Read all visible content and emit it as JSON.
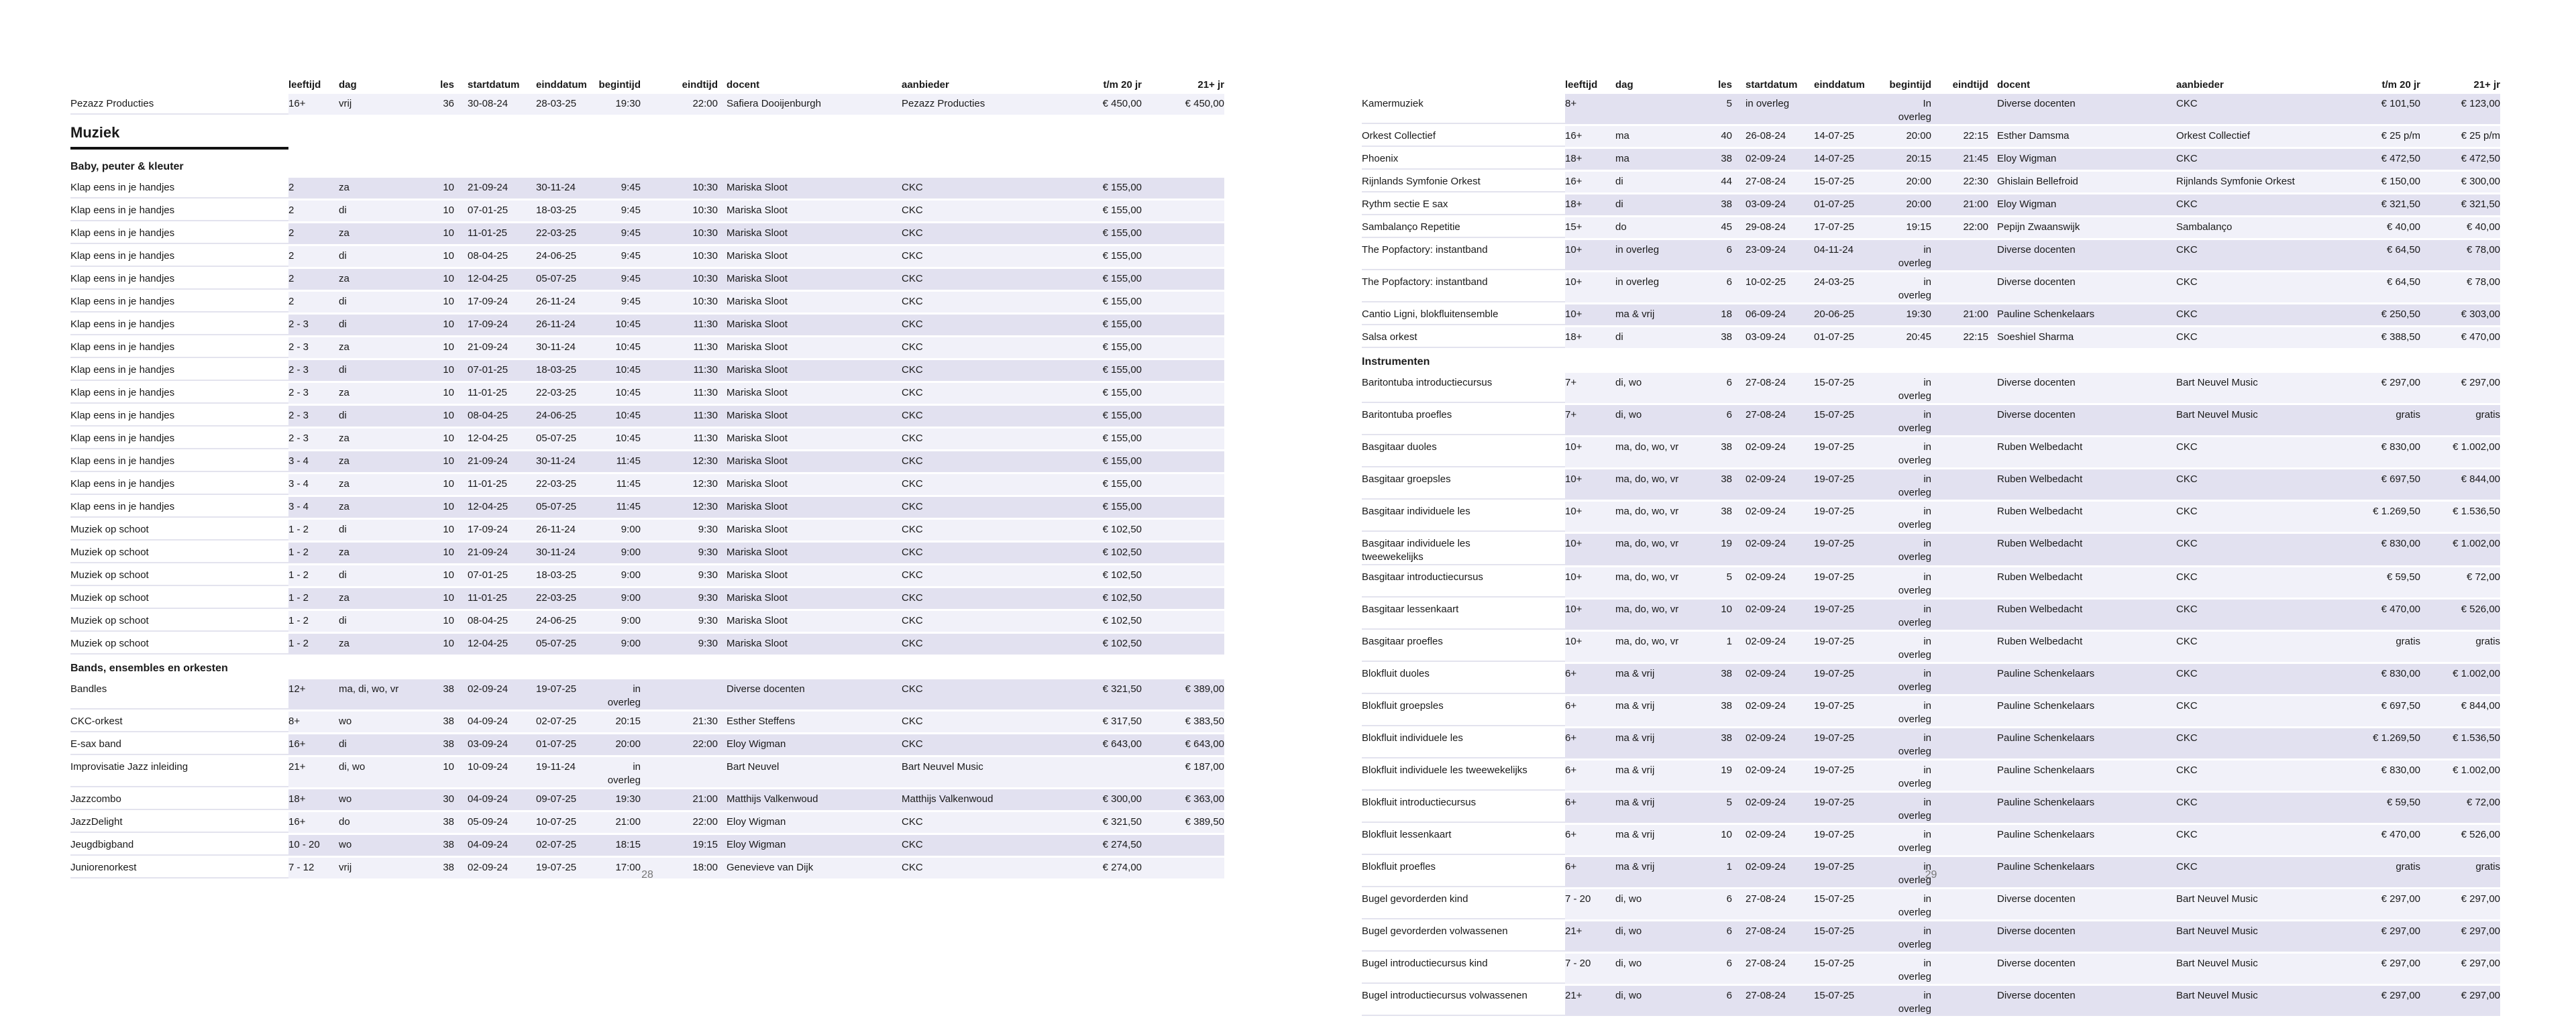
{
  "colors": {
    "stripe_dark": "#e2e1f0",
    "stripe_light": "#f1f1f9",
    "name_divider": "#e3e3ee",
    "heading_rule": "#121212",
    "page_number_color": "#777777"
  },
  "columns": [
    "",
    "leeftijd",
    "dag",
    "les",
    "startdatum",
    "einddatum",
    "begintijd",
    "eindtijd",
    "docent",
    "aanbieder",
    "t/m 20 jr",
    "21+ jr"
  ],
  "page_left": {
    "page_number": "28",
    "sections": [
      {
        "type": "rows",
        "rows": [
          [
            "Pezazz Producties",
            "16+",
            "vrij",
            "36",
            "30-08-24",
            "28-03-25",
            "19:30",
            "22:00",
            "Safiera Dooijenburgh",
            "Pezazz Producties",
            "€ 450,00",
            "€ 450,00"
          ]
        ]
      },
      {
        "type": "heading1",
        "label": "Muziek"
      },
      {
        "type": "heading2",
        "label": "Baby, peuter & kleuter"
      },
      {
        "type": "rows",
        "rows": [
          [
            "Klap eens in je handjes",
            "2",
            "za",
            "10",
            "21-09-24",
            "30-11-24",
            "9:45",
            "10:30",
            "Mariska Sloot",
            "CKC",
            "€ 155,00",
            ""
          ],
          [
            "Klap eens in je handjes",
            "2",
            "di",
            "10",
            "07-01-25",
            "18-03-25",
            "9:45",
            "10:30",
            "Mariska Sloot",
            "CKC",
            "€ 155,00",
            ""
          ],
          [
            "Klap eens in je handjes",
            "2",
            "za",
            "10",
            "11-01-25",
            "22-03-25",
            "9:45",
            "10:30",
            "Mariska Sloot",
            "CKC",
            "€ 155,00",
            ""
          ],
          [
            "Klap eens in je handjes",
            "2",
            "di",
            "10",
            "08-04-25",
            "24-06-25",
            "9:45",
            "10:30",
            "Mariska Sloot",
            "CKC",
            "€ 155,00",
            ""
          ],
          [
            "Klap eens in je handjes",
            "2",
            "za",
            "10",
            "12-04-25",
            "05-07-25",
            "9:45",
            "10:30",
            "Mariska Sloot",
            "CKC",
            "€ 155,00",
            ""
          ],
          [
            "Klap eens in je handjes",
            "2",
            "di",
            "10",
            "17-09-24",
            "26-11-24",
            "9:45",
            "10:30",
            "Mariska Sloot",
            "CKC",
            "€ 155,00",
            ""
          ],
          [
            "Klap eens in je handjes",
            "2 - 3",
            "di",
            "10",
            "17-09-24",
            "26-11-24",
            "10:45",
            "11:30",
            "Mariska Sloot",
            "CKC",
            "€ 155,00",
            ""
          ],
          [
            "Klap eens in je handjes",
            "2 - 3",
            "za",
            "10",
            "21-09-24",
            "30-11-24",
            "10:45",
            "11:30",
            "Mariska Sloot",
            "CKC",
            "€ 155,00",
            ""
          ],
          [
            "Klap eens in je handjes",
            "2 - 3",
            "di",
            "10",
            "07-01-25",
            "18-03-25",
            "10:45",
            "11:30",
            "Mariska Sloot",
            "CKC",
            "€ 155,00",
            ""
          ],
          [
            "Klap eens in je handjes",
            "2 - 3",
            "za",
            "10",
            "11-01-25",
            "22-03-25",
            "10:45",
            "11:30",
            "Mariska Sloot",
            "CKC",
            "€ 155,00",
            ""
          ],
          [
            "Klap eens in je handjes",
            "2 - 3",
            "di",
            "10",
            "08-04-25",
            "24-06-25",
            "10:45",
            "11:30",
            "Mariska Sloot",
            "CKC",
            "€ 155,00",
            ""
          ],
          [
            "Klap eens in je handjes",
            "2 - 3",
            "za",
            "10",
            "12-04-25",
            "05-07-25",
            "10:45",
            "11:30",
            "Mariska Sloot",
            "CKC",
            "€ 155,00",
            ""
          ],
          [
            "Klap eens in je handjes",
            "3 - 4",
            "za",
            "10",
            "21-09-24",
            "30-11-24",
            "11:45",
            "12:30",
            "Mariska Sloot",
            "CKC",
            "€ 155,00",
            ""
          ],
          [
            "Klap eens in je handjes",
            "3 - 4",
            "za",
            "10",
            "11-01-25",
            "22-03-25",
            "11:45",
            "12:30",
            "Mariska Sloot",
            "CKC",
            "€ 155,00",
            ""
          ],
          [
            "Klap eens in je handjes",
            "3 - 4",
            "za",
            "10",
            "12-04-25",
            "05-07-25",
            "11:45",
            "12:30",
            "Mariska Sloot",
            "CKC",
            "€ 155,00",
            ""
          ],
          [
            "Muziek op schoot",
            "1 - 2",
            "di",
            "10",
            "17-09-24",
            "26-11-24",
            "9:00",
            "9:30",
            "Mariska Sloot",
            "CKC",
            "€ 102,50",
            ""
          ],
          [
            "Muziek op schoot",
            "1 - 2",
            "za",
            "10",
            "21-09-24",
            "30-11-24",
            "9:00",
            "9:30",
            "Mariska Sloot",
            "CKC",
            "€ 102,50",
            ""
          ],
          [
            "Muziek op schoot",
            "1 - 2",
            "di",
            "10",
            "07-01-25",
            "18-03-25",
            "9:00",
            "9:30",
            "Mariska Sloot",
            "CKC",
            "€ 102,50",
            ""
          ],
          [
            "Muziek op schoot",
            "1 - 2",
            "za",
            "10",
            "11-01-25",
            "22-03-25",
            "9:00",
            "9:30",
            "Mariska Sloot",
            "CKC",
            "€ 102,50",
            ""
          ],
          [
            "Muziek op schoot",
            "1 - 2",
            "di",
            "10",
            "08-04-25",
            "24-06-25",
            "9:00",
            "9:30",
            "Mariska Sloot",
            "CKC",
            "€ 102,50",
            ""
          ],
          [
            "Muziek op schoot",
            "1 - 2",
            "za",
            "10",
            "12-04-25",
            "05-07-25",
            "9:00",
            "9:30",
            "Mariska Sloot",
            "CKC",
            "€ 102,50",
            ""
          ]
        ]
      },
      {
        "type": "heading2",
        "label": "Bands, ensembles en orkesten"
      },
      {
        "type": "rows",
        "rows": [
          [
            "Bandles",
            "12+",
            "ma, di, wo, vr",
            "38",
            "02-09-24",
            "19-07-25",
            "in overleg",
            "",
            "Diverse docenten",
            "CKC",
            "€ 321,50",
            "€ 389,00"
          ],
          [
            "CKC-orkest",
            "8+",
            "wo",
            "38",
            "04-09-24",
            "02-07-25",
            "20:15",
            "21:30",
            "Esther Steffens",
            "CKC",
            "€ 317,50",
            "€ 383,50"
          ],
          [
            "E-sax band",
            "16+",
            "di",
            "38",
            "03-09-24",
            "01-07-25",
            "20:00",
            "22:00",
            "Eloy Wigman",
            "CKC",
            "€ 643,00",
            "€ 643,00"
          ],
          [
            "Improvisatie Jazz inleiding",
            "21+",
            "di, wo",
            "10",
            "10-09-24",
            "19-11-24",
            "in overleg",
            "",
            "Bart Neuvel",
            "Bart Neuvel Music",
            "",
            "€ 187,00"
          ],
          [
            "Jazzcombo",
            "18+",
            "wo",
            "30",
            "04-09-24",
            "09-07-25",
            "19:30",
            "21:00",
            "Matthijs Valkenwoud",
            "Matthijs Valkenwoud",
            "€ 300,00",
            "€ 363,00"
          ],
          [
            "JazzDelight",
            "16+",
            "do",
            "38",
            "05-09-24",
            "10-07-25",
            "21:00",
            "22:00",
            "Eloy Wigman",
            "CKC",
            "€ 321,50",
            "€ 389,50"
          ],
          [
            "Jeugdbigband",
            "10 - 20",
            "wo",
            "38",
            "04-09-24",
            "02-07-25",
            "18:15",
            "19:15",
            "Eloy Wigman",
            "CKC",
            "€ 274,50",
            ""
          ],
          [
            "Juniorenorkest",
            "7 - 12",
            "vrij",
            "38",
            "02-09-24",
            "19-07-25",
            "17:00",
            "18:00",
            "Genevieve van Dijk",
            "CKC",
            "€ 274,00",
            ""
          ]
        ]
      }
    ]
  },
  "page_right": {
    "page_number": "29",
    "sections": [
      {
        "type": "rows",
        "rows": [
          [
            "Kamermuziek",
            "8+",
            "",
            "5",
            "in overleg",
            "",
            "In overleg",
            "",
            "Diverse docenten",
            "CKC",
            "€ 101,50",
            "€ 123,00"
          ],
          [
            "Orkest Collectief",
            "16+",
            "ma",
            "40",
            "26-08-24",
            "14-07-25",
            "20:00",
            "22:15",
            "Esther Damsma",
            "Orkest Collectief",
            "€ 25 p/m",
            "€ 25 p/m"
          ],
          [
            "Phoenix",
            "18+",
            "ma",
            "38",
            "02-09-24",
            "14-07-25",
            "20:15",
            "21:45",
            "Eloy Wigman",
            "CKC",
            "€ 472,50",
            "€ 472,50"
          ],
          [
            "Rijnlands Symfonie Orkest",
            "16+",
            "di",
            "44",
            "27-08-24",
            "15-07-25",
            "20:00",
            "22:30",
            "Ghislain Bellefroid",
            "Rijnlands Symfonie Orkest",
            "€ 150,00",
            "€ 300,00"
          ],
          [
            "Rythm sectie E sax",
            "18+",
            "di",
            "38",
            "03-09-24",
            "01-07-25",
            "20:00",
            "21:00",
            "Eloy Wigman",
            "CKC",
            "€ 321,50",
            "€ 321,50"
          ],
          [
            "Sambalanço Repetitie",
            "15+",
            "do",
            "45",
            "29-08-24",
            "17-07-25",
            "19:15",
            "22:00",
            "Pepijn Zwaanswijk",
            "Sambalanço",
            "€ 40,00",
            "€ 40,00"
          ],
          [
            "The Popfactory: instantband",
            "10+",
            "in overleg",
            "6",
            "23-09-24",
            "04-11-24",
            "in overleg",
            "",
            "Diverse docenten",
            "CKC",
            "€ 64,50",
            "€ 78,00"
          ],
          [
            "The Popfactory: instantband",
            "10+",
            "in overleg",
            "6",
            "10-02-25",
            "24-03-25",
            "in overleg",
            "",
            "Diverse docenten",
            "CKC",
            "€ 64,50",
            "€ 78,00"
          ],
          [
            "Cantio Ligni, blokfluitensemble",
            "10+",
            "ma & vrij",
            "18",
            "06-09-24",
            "20-06-25",
            "19:30",
            "21:00",
            "Pauline Schenkelaars",
            "CKC",
            "€ 250,50",
            "€ 303,00"
          ],
          [
            "Salsa orkest",
            "18+",
            "di",
            "38",
            "03-09-24",
            "01-07-25",
            "20:45",
            "22:15",
            "Soeshiel Sharma",
            "CKC",
            "€ 388,50",
            "€ 470,00"
          ]
        ]
      },
      {
        "type": "heading2",
        "label": "Instrumenten"
      },
      {
        "type": "rows",
        "rows": [
          [
            "Baritontuba introductiecursus",
            "7+",
            "di, wo",
            "6",
            "27-08-24",
            "15-07-25",
            "in overleg",
            "",
            "Diverse docenten",
            "Bart Neuvel Music",
            "€ 297,00",
            "€ 297,00"
          ],
          [
            "Baritontuba proefles",
            "7+",
            "di, wo",
            "6",
            "27-08-24",
            "15-07-25",
            "in overleg",
            "",
            "Diverse docenten",
            "Bart Neuvel Music",
            "gratis",
            "gratis"
          ],
          [
            "Basgitaar duoles",
            "10+",
            "ma, do, wo, vr",
            "38",
            "02-09-24",
            "19-07-25",
            "in overleg",
            "",
            "Ruben Welbedacht",
            "CKC",
            "€ 830,00",
            "€ 1.002,00"
          ],
          [
            "Basgitaar groepsles",
            "10+",
            "ma, do, wo, vr",
            "38",
            "02-09-24",
            "19-07-25",
            "in overleg",
            "",
            "Ruben Welbedacht",
            "CKC",
            "€ 697,50",
            "€ 844,00"
          ],
          [
            "Basgitaar individuele les",
            "10+",
            "ma, do, wo, vr",
            "38",
            "02-09-24",
            "19-07-25",
            "in overleg",
            "",
            "Ruben Welbedacht",
            "CKC",
            "€ 1.269,50",
            "€ 1.536,50"
          ],
          [
            "Basgitaar individuele les tweewekelijks",
            "10+",
            "ma, do, wo, vr",
            "19",
            "02-09-24",
            "19-07-25",
            "in overleg",
            "",
            "Ruben Welbedacht",
            "CKC",
            "€ 830,00",
            "€ 1.002,00"
          ],
          [
            "Basgitaar introductiecursus",
            "10+",
            "ma, do, wo, vr",
            "5",
            "02-09-24",
            "19-07-25",
            "in overleg",
            "",
            "Ruben Welbedacht",
            "CKC",
            "€ 59,50",
            "€ 72,00"
          ],
          [
            "Basgitaar lessenkaart",
            "10+",
            "ma, do, wo, vr",
            "10",
            "02-09-24",
            "19-07-25",
            "in overleg",
            "",
            "Ruben Welbedacht",
            "CKC",
            "€ 470,00",
            "€ 526,00"
          ],
          [
            "Basgitaar proefles",
            "10+",
            "ma, do, wo, vr",
            "1",
            "02-09-24",
            "19-07-25",
            "in overleg",
            "",
            "Ruben Welbedacht",
            "CKC",
            "gratis",
            "gratis"
          ],
          [
            "Blokfluit duoles",
            "6+",
            "ma & vrij",
            "38",
            "02-09-24",
            "19-07-25",
            "in overleg",
            "",
            "Pauline Schenkelaars",
            "CKC",
            "€ 830,00",
            "€ 1.002,00"
          ],
          [
            "Blokfluit groepsles",
            "6+",
            "ma & vrij",
            "38",
            "02-09-24",
            "19-07-25",
            "in overleg",
            "",
            "Pauline Schenkelaars",
            "CKC",
            "€ 697,50",
            "€ 844,00"
          ],
          [
            "Blokfluit individuele les",
            "6+",
            "ma & vrij",
            "38",
            "02-09-24",
            "19-07-25",
            "in overleg",
            "",
            "Pauline Schenkelaars",
            "CKC",
            "€ 1.269,50",
            "€ 1.536,50"
          ],
          [
            "Blokfluit individuele les tweewekelijks",
            "6+",
            "ma & vrij",
            "19",
            "02-09-24",
            "19-07-25",
            "in overleg",
            "",
            "Pauline Schenkelaars",
            "CKC",
            "€ 830,00",
            "€ 1.002,00"
          ],
          [
            "Blokfluit introductiecursus",
            "6+",
            "ma & vrij",
            "5",
            "02-09-24",
            "19-07-25",
            "in overleg",
            "",
            "Pauline Schenkelaars",
            "CKC",
            "€ 59,50",
            "€ 72,00"
          ],
          [
            "Blokfluit lessenkaart",
            "6+",
            "ma & vrij",
            "10",
            "02-09-24",
            "19-07-25",
            "in overleg",
            "",
            "Pauline Schenkelaars",
            "CKC",
            "€ 470,00",
            "€ 526,00"
          ],
          [
            "Blokfluit proefles",
            "6+",
            "ma & vrij",
            "1",
            "02-09-24",
            "19-07-25",
            "in overleg",
            "",
            "Pauline Schenkelaars",
            "CKC",
            "gratis",
            "gratis"
          ],
          [
            "Bugel gevorderden kind",
            "7 - 20",
            "di, wo",
            "6",
            "27-08-24",
            "15-07-25",
            "in overleg",
            "",
            "Diverse docenten",
            "Bart Neuvel Music",
            "€ 297,00",
            "€ 297,00"
          ],
          [
            "Bugel gevorderden volwassenen",
            "21+",
            "di, wo",
            "6",
            "27-08-24",
            "15-07-25",
            "in overleg",
            "",
            "Diverse docenten",
            "Bart Neuvel Music",
            "€ 297,00",
            "€ 297,00"
          ],
          [
            "Bugel introductiecursus kind",
            "7 - 20",
            "di, wo",
            "6",
            "27-08-24",
            "15-07-25",
            "in overleg",
            "",
            "Diverse docenten",
            "Bart Neuvel Music",
            "€ 297,00",
            "€ 297,00"
          ],
          [
            "Bugel introductiecursus volwassenen",
            "21+",
            "di, wo",
            "6",
            "27-08-24",
            "15-07-25",
            "in overleg",
            "",
            "Diverse docenten",
            "Bart Neuvel Music",
            "€ 297,00",
            "€ 297,00"
          ]
        ]
      }
    ]
  }
}
